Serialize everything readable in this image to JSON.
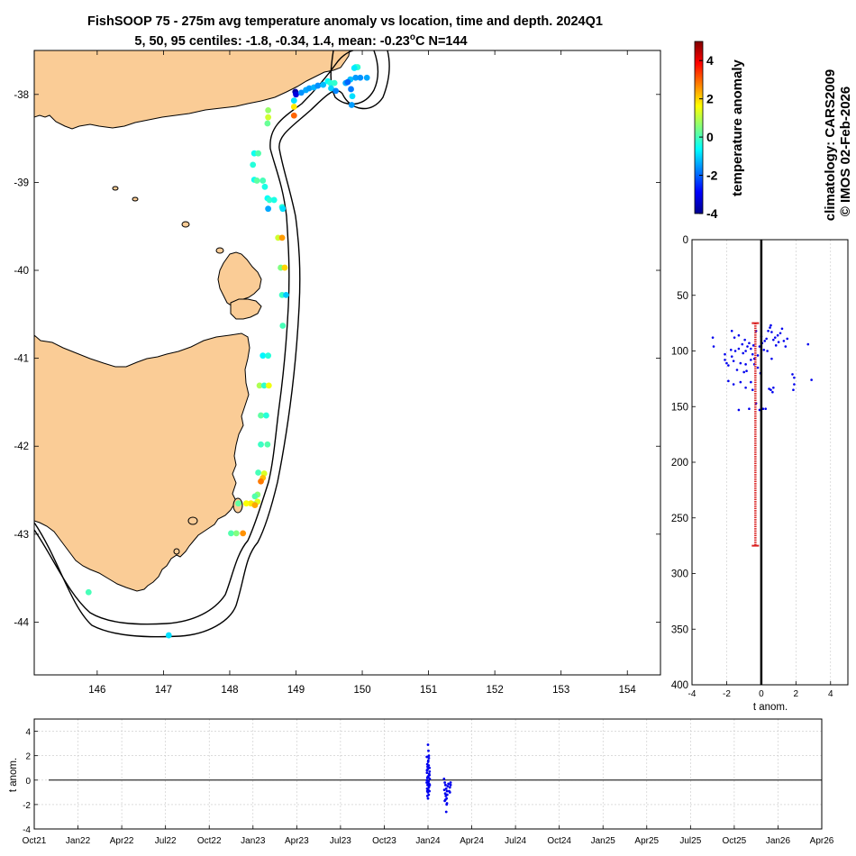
{
  "title_line1": "FishSOOP 75 - 275m avg temperature anomaly vs location, time and depth. 2024Q1",
  "title_line2a": "5, 50, 95 centiles: -1.8, -0.34, 1.4, mean: -0.23",
  "title_line2b": "o",
  "title_line2c": "C N=144",
  "credit_climatology": "climatology: CARS2009",
  "credit_copyright": "© IMOS 02-Feb-2026",
  "chart_data": [
    {
      "type": "scatter",
      "name": "map",
      "title": "FishSOOP 75 - 275m avg temperature anomaly vs location, time and depth. 2024Q1",
      "xlim": [
        145.05,
        154.5
      ],
      "ylim": [
        -44.6,
        -37.5
      ],
      "xticks": [
        146,
        147,
        148,
        149,
        150,
        151,
        152,
        153,
        154
      ],
      "yticks": [
        -38,
        -39,
        -40,
        -41,
        -42,
        -43,
        -44
      ],
      "colors": {
        "land": "#FACC96",
        "coast": "#000000",
        "contour": "#000000"
      },
      "points": [
        {
          "lon": 148.99,
          "lat": -37.97,
          "anom": -3.8
        },
        {
          "lon": 149.0,
          "lat": -38.0,
          "anom": -3.2
        },
        {
          "lon": 149.08,
          "lat": -37.98,
          "anom": -1.6
        },
        {
          "lon": 149.15,
          "lat": -37.95,
          "anom": -1.4
        },
        {
          "lon": 149.2,
          "lat": -37.93,
          "anom": -1.5
        },
        {
          "lon": 149.27,
          "lat": -37.92,
          "anom": -1.3
        },
        {
          "lon": 149.33,
          "lat": -37.9,
          "anom": -1.6
        },
        {
          "lon": 149.41,
          "lat": -37.89,
          "anom": -1.2
        },
        {
          "lon": 149.48,
          "lat": -37.85,
          "anom": -0.6
        },
        {
          "lon": 149.52,
          "lat": -37.87,
          "anom": -0.3
        },
        {
          "lon": 149.58,
          "lat": -37.87,
          "anom": -0.2
        },
        {
          "lon": 149.53,
          "lat": -37.93,
          "anom": -1.0
        },
        {
          "lon": 149.6,
          "lat": -37.96,
          "anom": -1.7
        },
        {
          "lon": 149.75,
          "lat": -37.87,
          "anom": -1.4
        },
        {
          "lon": 149.82,
          "lat": -37.83,
          "anom": -1.2
        },
        {
          "lon": 149.9,
          "lat": -37.69,
          "anom": -0.4
        },
        {
          "lon": 149.93,
          "lat": -37.69,
          "anom": -0.2
        },
        {
          "lon": 149.88,
          "lat": -37.7,
          "anom": -0.8
        },
        {
          "lon": 149.9,
          "lat": -37.81,
          "anom": -1.5
        },
        {
          "lon": 149.97,
          "lat": -37.81,
          "anom": -1.6
        },
        {
          "lon": 150.07,
          "lat": -37.81,
          "anom": -1.4
        },
        {
          "lon": 149.78,
          "lat": -37.86,
          "anom": -2.0
        },
        {
          "lon": 149.83,
          "lat": -37.94,
          "anom": -1.8
        },
        {
          "lon": 149.85,
          "lat": -38.02,
          "anom": -0.9
        },
        {
          "lon": 149.84,
          "lat": -38.12,
          "anom": -1.5
        },
        {
          "lon": 148.97,
          "lat": -38.07,
          "anom": -0.9
        },
        {
          "lon": 148.97,
          "lat": -38.14,
          "anom": 1.8
        },
        {
          "lon": 148.97,
          "lat": -38.24,
          "anom": 3.0
        },
        {
          "lon": 148.58,
          "lat": -38.18,
          "anom": 0.7
        },
        {
          "lon": 148.58,
          "lat": -38.26,
          "anom": 1.2
        },
        {
          "lon": 148.57,
          "lat": -38.33,
          "anom": 0.3
        },
        {
          "lon": 148.37,
          "lat": -38.67,
          "anom": -0.5
        },
        {
          "lon": 148.43,
          "lat": -38.67,
          "anom": 0.1
        },
        {
          "lon": 148.35,
          "lat": -38.8,
          "anom": -0.3
        },
        {
          "lon": 148.37,
          "lat": -38.97,
          "anom": -0.5
        },
        {
          "lon": 148.41,
          "lat": -38.98,
          "anom": 0.2
        },
        {
          "lon": 148.5,
          "lat": -38.98,
          "anom": 0.0
        },
        {
          "lon": 148.53,
          "lat": -39.05,
          "anom": -0.4
        },
        {
          "lon": 148.57,
          "lat": -39.18,
          "anom": -0.6
        },
        {
          "lon": 148.6,
          "lat": -39.2,
          "anom": -0.2
        },
        {
          "lon": 148.67,
          "lat": -39.2,
          "anom": -0.4
        },
        {
          "lon": 148.58,
          "lat": -39.3,
          "anom": -1.4
        },
        {
          "lon": 148.79,
          "lat": -39.28,
          "anom": -0.3
        },
        {
          "lon": 148.8,
          "lat": -39.3,
          "anom": -0.9
        },
        {
          "lon": 148.73,
          "lat": -39.63,
          "anom": 1.2
        },
        {
          "lon": 148.79,
          "lat": -39.63,
          "anom": 2.5
        },
        {
          "lon": 148.77,
          "lat": -39.97,
          "anom": 0.5
        },
        {
          "lon": 148.83,
          "lat": -39.97,
          "anom": 2.0
        },
        {
          "lon": 148.79,
          "lat": -40.28,
          "anom": -0.1
        },
        {
          "lon": 148.85,
          "lat": -40.28,
          "anom": -1.1
        },
        {
          "lon": 148.8,
          "lat": -40.63,
          "anom": 0.0
        },
        {
          "lon": 148.5,
          "lat": -40.97,
          "anom": -0.7
        },
        {
          "lon": 148.58,
          "lat": -40.97,
          "anom": -0.3
        },
        {
          "lon": 148.45,
          "lat": -41.31,
          "anom": 0.9
        },
        {
          "lon": 148.52,
          "lat": -41.31,
          "anom": -0.2
        },
        {
          "lon": 148.59,
          "lat": -41.31,
          "anom": 1.5
        },
        {
          "lon": 148.47,
          "lat": -41.65,
          "anom": 0.2
        },
        {
          "lon": 148.55,
          "lat": -41.65,
          "anom": -0.3
        },
        {
          "lon": 148.47,
          "lat": -41.98,
          "anom": -0.1
        },
        {
          "lon": 148.57,
          "lat": -41.98,
          "anom": 0.1
        },
        {
          "lon": 148.43,
          "lat": -42.3,
          "anom": 0.0
        },
        {
          "lon": 148.52,
          "lat": -42.31,
          "anom": 1.3
        },
        {
          "lon": 148.5,
          "lat": -42.36,
          "anom": 2.2
        },
        {
          "lon": 148.47,
          "lat": -42.4,
          "anom": 2.8
        },
        {
          "lon": 148.42,
          "lat": -42.55,
          "anom": 0.6
        },
        {
          "lon": 148.38,
          "lat": -42.57,
          "anom": 0.1
        },
        {
          "lon": 148.42,
          "lat": -42.63,
          "anom": 1.4
        },
        {
          "lon": 148.37,
          "lat": -42.66,
          "anom": 0.8
        },
        {
          "lon": 148.32,
          "lat": -42.65,
          "anom": 1.8
        },
        {
          "lon": 148.25,
          "lat": -42.65,
          "anom": 1.6
        },
        {
          "lon": 148.13,
          "lat": -42.65,
          "anom": 0.2
        },
        {
          "lon": 148.38,
          "lat": -42.67,
          "anom": 2.4
        },
        {
          "lon": 148.02,
          "lat": -42.99,
          "anom": 0.1
        },
        {
          "lon": 148.1,
          "lat": -42.99,
          "anom": 0.5
        },
        {
          "lon": 148.2,
          "lat": -42.99,
          "anom": 2.6
        },
        {
          "lon": 145.87,
          "lat": -43.66,
          "anom": 0.0
        },
        {
          "lon": 147.08,
          "lat": -44.15,
          "anom": -0.9
        }
      ]
    },
    {
      "type": "colorbar",
      "name": "colorbar",
      "ylabel": "temperature anomaly",
      "ylim": [
        -4,
        5
      ],
      "ticks": [
        -4,
        -2,
        0,
        2,
        4
      ],
      "tick_labels": [
        "-4",
        "-2",
        "0",
        "2",
        "4"
      ],
      "colors": [
        "#00008F",
        "#0000FF",
        "#0080FF",
        "#00FFFF",
        "#80FF80",
        "#FFFF00",
        "#FF8000",
        "#FF0000",
        "#800000"
      ]
    },
    {
      "type": "scatter",
      "name": "depth-profile",
      "xlabel": "t anom.",
      "xlim": [
        -4,
        5
      ],
      "ylim": [
        0,
        400
      ],
      "y_reversed": true,
      "xticks": [
        -4,
        -2,
        0,
        2,
        4
      ],
      "yticks": [
        0,
        50,
        100,
        150,
        200,
        250,
        300,
        350,
        400
      ],
      "range_bar": {
        "x": -0.34,
        "y_top": 75,
        "y_bottom": 275,
        "color": "#D92020"
      },
      "zero_line_x": 0,
      "points": [
        [
          -2.8,
          88
        ],
        [
          -2.75,
          96
        ],
        [
          -2.1,
          108
        ],
        [
          -1.9,
          113
        ],
        [
          -2.0,
          111
        ],
        [
          -1.7,
          105
        ],
        [
          -1.5,
          100
        ],
        [
          -1.3,
          98
        ],
        [
          -1.1,
          94
        ],
        [
          -0.95,
          90
        ],
        [
          -0.9,
          100
        ],
        [
          -0.8,
          96
        ],
        [
          -0.7,
          93
        ],
        [
          -0.6,
          98
        ],
        [
          -0.5,
          103
        ],
        [
          -0.4,
          107
        ],
        [
          -0.2,
          104
        ],
        [
          -0.1,
          96
        ],
        [
          0.05,
          93
        ],
        [
          0.2,
          91
        ],
        [
          0.3,
          89
        ],
        [
          0.4,
          82
        ],
        [
          0.5,
          79
        ],
        [
          0.55,
          77
        ],
        [
          0.6,
          83
        ],
        [
          0.7,
          90
        ],
        [
          0.8,
          88
        ],
        [
          1.0,
          92
        ],
        [
          1.1,
          84
        ],
        [
          1.2,
          80
        ],
        [
          1.3,
          91
        ],
        [
          1.5,
          89
        ],
        [
          -1.6,
          109
        ],
        [
          -1.2,
          111
        ],
        [
          -0.9,
          112
        ],
        [
          -0.6,
          108
        ],
        [
          -0.4,
          112
        ],
        [
          -0.2,
          115
        ],
        [
          -1.4,
          117
        ],
        [
          -1.0,
          119
        ],
        [
          -1.9,
          127
        ],
        [
          -1.6,
          130
        ],
        [
          -1.2,
          128
        ],
        [
          -0.9,
          133
        ],
        [
          -0.6,
          128
        ],
        [
          -0.5,
          135
        ],
        [
          -0.3,
          147
        ],
        [
          -0.1,
          153
        ],
        [
          0.1,
          152
        ],
        [
          0.25,
          152
        ],
        [
          -1.3,
          153
        ],
        [
          -0.7,
          152
        ],
        [
          0.45,
          134
        ],
        [
          0.55,
          135
        ],
        [
          0.65,
          137
        ],
        [
          0.7,
          133
        ],
        [
          1.8,
          121
        ],
        [
          1.9,
          124
        ],
        [
          1.9,
          130
        ],
        [
          1.85,
          135
        ],
        [
          2.7,
          94
        ],
        [
          2.9,
          126
        ],
        [
          -1.7,
          82
        ],
        [
          -1.3,
          86
        ],
        [
          -0.3,
          82
        ],
        [
          0.0,
          87
        ],
        [
          0.85,
          95
        ],
        [
          0.15,
          99
        ],
        [
          1.4,
          96
        ],
        [
          -1.75,
          99
        ],
        [
          -0.45,
          95
        ],
        [
          -1.55,
          88
        ],
        [
          0.95,
          86
        ],
        [
          -0.05,
          120
        ],
        [
          0.35,
          100
        ],
        [
          -2.1,
          103
        ],
        [
          -1.05,
          102
        ],
        [
          -0.85,
          118
        ],
        [
          0.6,
          107
        ]
      ]
    },
    {
      "type": "scatter",
      "name": "time-series",
      "ylabel": "t anom.",
      "x_range": [
        "Oct21",
        "Apr26"
      ],
      "ylim": [
        -4,
        5
      ],
      "yticks": [
        -4,
        -2,
        0,
        2,
        4
      ],
      "xtick_labels": [
        "Oct21",
        "Jan22",
        "Apr22",
        "Jul22",
        "Oct22",
        "Jan23",
        "Apr23",
        "Jul23",
        "Oct23",
        "Jan24",
        "Apr24",
        "Jul24",
        "Oct24",
        "Jan25",
        "Apr25",
        "Jul25",
        "Oct25",
        "Jan26",
        "Apr26"
      ],
      "points": [
        [
          27.0,
          2.9
        ],
        [
          27.03,
          2.4
        ],
        [
          27.06,
          1.8
        ],
        [
          27.02,
          1.6
        ],
        [
          26.95,
          1.3
        ],
        [
          27.05,
          1.2
        ],
        [
          27.1,
          1.0
        ],
        [
          26.98,
          0.9
        ],
        [
          26.93,
          0.6
        ],
        [
          27.08,
          0.5
        ],
        [
          27.0,
          0.3
        ],
        [
          26.96,
          0.2
        ],
        [
          27.12,
          0.1
        ],
        [
          26.92,
          0.0
        ],
        [
          27.04,
          -0.1
        ],
        [
          27.0,
          -0.2
        ],
        [
          26.97,
          -0.4
        ],
        [
          27.07,
          -0.5
        ],
        [
          26.94,
          -0.7
        ],
        [
          27.02,
          -0.8
        ],
        [
          27.1,
          -0.9
        ],
        [
          26.99,
          -1.0
        ],
        [
          27.05,
          -1.2
        ],
        [
          26.96,
          -1.3
        ],
        [
          27.08,
          -0.3
        ],
        [
          26.93,
          0.8
        ],
        [
          27.01,
          1.5
        ],
        [
          27.11,
          0.7
        ],
        [
          27.06,
          -0.6
        ],
        [
          26.91,
          -0.2
        ],
        [
          27.0,
          -1.5
        ],
        [
          27.06,
          2.0
        ],
        [
          26.97,
          1.1
        ],
        [
          27.1,
          0.4
        ],
        [
          26.95,
          -0.9
        ],
        [
          27.03,
          0.2
        ],
        [
          26.92,
          1.9
        ],
        [
          27.12,
          -0.4
        ],
        [
          28.1,
          0.1
        ],
        [
          28.15,
          -0.2
        ],
        [
          28.2,
          -0.4
        ],
        [
          28.25,
          -0.7
        ],
        [
          28.3,
          -0.9
        ],
        [
          28.18,
          -1.1
        ],
        [
          28.22,
          -1.3
        ],
        [
          28.28,
          -1.5
        ],
        [
          28.15,
          -1.7
        ],
        [
          28.3,
          -1.9
        ],
        [
          28.25,
          -2.6
        ],
        [
          28.35,
          -0.5
        ],
        [
          28.4,
          -0.3
        ],
        [
          28.45,
          -0.9
        ],
        [
          28.5,
          -0.6
        ],
        [
          28.55,
          -0.2
        ],
        [
          28.12,
          -0.8
        ],
        [
          28.2,
          -1.6
        ],
        [
          28.32,
          -1.2
        ],
        [
          28.5,
          -1.0
        ],
        [
          28.55,
          -0.4
        ],
        [
          28.28,
          -2.0
        ]
      ]
    }
  ]
}
